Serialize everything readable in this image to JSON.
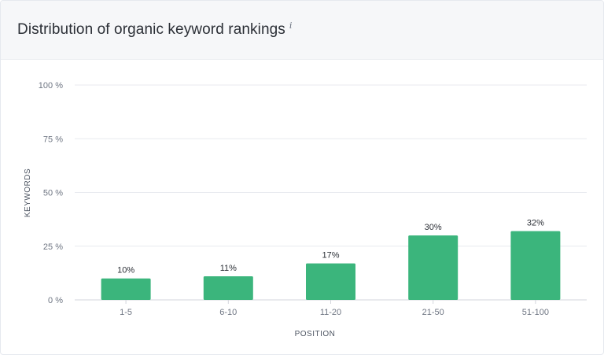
{
  "header": {
    "title": "Distribution of organic keyword rankings",
    "info_icon": "info-icon",
    "info_glyph": "i"
  },
  "colors": {
    "bar": "#3bb57c",
    "grid": "#e8eaef",
    "baseline": "#d3d6dc"
  },
  "chart_data": {
    "type": "bar",
    "categories": [
      "1-5",
      "6-10",
      "11-20",
      "21-50",
      "51-100"
    ],
    "values": [
      10,
      11,
      17,
      30,
      32
    ],
    "value_labels": [
      "10%",
      "11%",
      "17%",
      "30%",
      "32%"
    ],
    "title": "Distribution of organic keyword rankings",
    "xlabel": "POSITION",
    "ylabel": "KEYWORDS",
    "ylim": [
      0,
      100
    ],
    "yticks": [
      0,
      25,
      50,
      75,
      100
    ],
    "ytick_labels": [
      "0 %",
      "25 %",
      "50 %",
      "75 %",
      "100 %"
    ],
    "grid": true
  }
}
